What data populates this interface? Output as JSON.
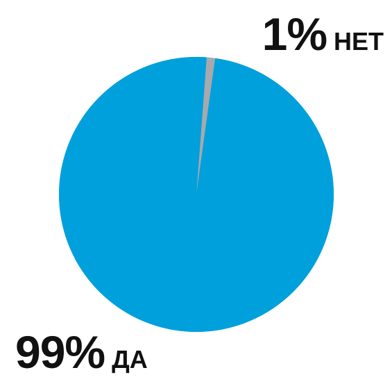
{
  "chart_data": {
    "type": "pie",
    "slices": [
      {
        "name": "НЕТ",
        "label": "1%",
        "value": 1,
        "color": "#a7a9ac"
      },
      {
        "name": "ДА",
        "label": "99%",
        "value": 99,
        "color": "#00a0dc"
      }
    ]
  },
  "labels": {
    "no_pct": "1%",
    "no_text": "НЕТ",
    "yes_pct": "99%",
    "yes_text": "ДА"
  }
}
